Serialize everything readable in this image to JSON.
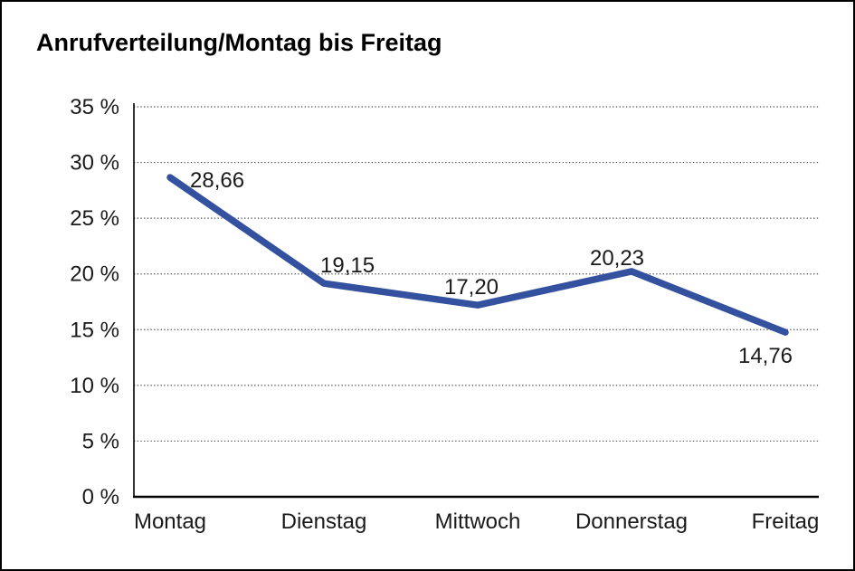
{
  "title": "Anrufverteilung/Montag bis Freitag",
  "chart_data": {
    "type": "line",
    "title": "Anrufverteilung/Montag bis Freitag",
    "categories": [
      "Montag",
      "Dienstag",
      "Mittwoch",
      "Donnerstag",
      "Freitag"
    ],
    "values": [
      28.66,
      19.15,
      17.2,
      20.23,
      14.76
    ],
    "value_labels": [
      "28,66",
      "19,15",
      "17,20",
      "20,23",
      "14,76"
    ],
    "y_tick_labels": [
      "0 %",
      "5 %",
      "10 %",
      "15 %",
      "20 %",
      "25 %",
      "30 %",
      "35 %"
    ],
    "ylim": [
      0,
      35
    ],
    "y_step": 5,
    "xlabel": "",
    "ylabel": "",
    "legend": "none",
    "grid": "horizontal-dotted",
    "line_color": "#33519E",
    "grid_color": "#4a4a4a",
    "axis_color": "#000000",
    "text_color": "#1a1a1a"
  }
}
